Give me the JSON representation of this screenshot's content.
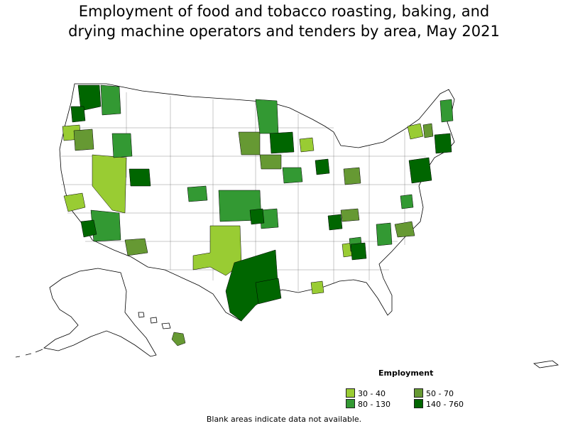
{
  "title": {
    "line1": "Employment of food and tobacco roasting, baking, and",
    "line2": "drying machine operators and tenders by area, May 2021"
  },
  "legend": {
    "title": "Employment",
    "items": [
      {
        "label": "30 - 40",
        "color": "#99cc33"
      },
      {
        "label": "50 - 70",
        "color": "#669933"
      },
      {
        "label": "80 - 130",
        "color": "#339933"
      },
      {
        "label": "140 - 760",
        "color": "#006600"
      }
    ]
  },
  "note": "Blank areas indicate data not available.",
  "map_data": {
    "type": "choropleth",
    "region": "United States (metropolitan and nonmetropolitan areas)",
    "no_data_color": "#ffffff",
    "border_color": "#000000"
  }
}
